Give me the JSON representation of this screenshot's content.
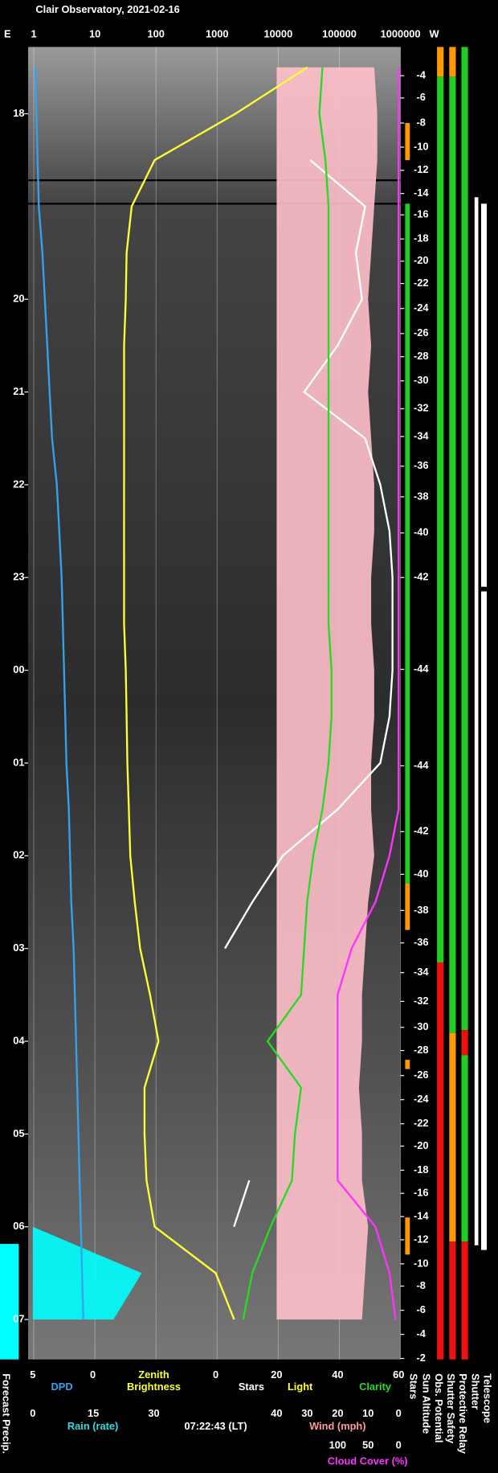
{
  "chart_data": {
    "type": "line",
    "title": "Clair Observatory, 2021-02-16",
    "left_label": "E",
    "right_label": "W",
    "time_label": "07:22:43 (LT)",
    "grid": true,
    "ylim": [
      17.28,
      31.43
    ],
    "yticks": [
      18,
      20,
      21,
      22,
      23,
      {
        "value": 24,
        "label": "00"
      },
      {
        "value": 25,
        "label": "01"
      },
      {
        "value": 26,
        "label": "02"
      },
      {
        "value": 27,
        "label": "03"
      },
      {
        "value": 28,
        "label": "04"
      },
      {
        "value": 29,
        "label": "05"
      },
      {
        "value": 30,
        "label": "06"
      },
      {
        "value": 31,
        "label": "07"
      }
    ],
    "x": [
      17.5,
      18,
      18.5,
      19,
      19.5,
      20,
      20.5,
      21,
      21.5,
      22,
      22.5,
      23,
      23.5,
      24,
      24.5,
      25,
      25.5,
      26,
      26.5,
      27,
      27.5,
      28,
      28.5,
      29,
      29.5,
      30,
      30.5,
      31
    ],
    "bottom_axes": [
      {
        "label": "DPD",
        "color": "#33a3ee",
        "lim": [
          5,
          0
        ],
        "ticks": [
          5,
          0
        ],
        "series": [
          {
            "color": "#33a3ee",
            "values": [
              4.8,
              4.7,
              4.6,
              4.5,
              4.2,
              4.0,
              3.8,
              3.6,
              3.4,
              3.0,
              2.8,
              2.6,
              2.5,
              2.4,
              2.3,
              2.2,
              2.0,
              1.9,
              1.8,
              1.6,
              1.5,
              1.4,
              1.3,
              1.2,
              1.1,
              1.0,
              0.9,
              0.8
            ]
          }
        ]
      },
      {
        "label": [
          "Zenith",
          "Brightness"
        ],
        "color": "#ffff33",
        "log": true,
        "lim": [
          1,
          1000000
        ],
        "ticks": [
          1,
          10,
          100,
          1000,
          10000,
          100000,
          1000000
        ],
        "series": [
          {
            "color": "#ffff33",
            "values": [
              30000,
              2000,
              95,
              40,
              33,
              32,
              30,
              30,
              30,
              30,
              30,
              30,
              30,
              32,
              33,
              34,
              36,
              38,
              45,
              55,
              80,
              110,
              65,
              65,
              70,
              95,
              950,
              1900
            ]
          }
        ]
      },
      {
        "light_label": "Light",
        "light_color": "#ffff33",
        "lim": [
          0,
          60
        ],
        "ticks": [
          0,
          20,
          40,
          60
        ],
        "series": [
          {
            "name": "Stars",
            "color": "#ffffff",
            "values": [
              null,
              null,
              31,
              49,
              46,
              48,
              40,
              29,
              49,
              54,
              57,
              58,
              58,
              58,
              57,
              54,
              40,
              22,
              12,
              3,
              null,
              null,
              null,
              null,
              11,
              6,
              null,
              null
            ]
          },
          {
            "name": "Clarity",
            "color": "#22dd22",
            "values": [
              35,
              34,
              36,
              37,
              37,
              37,
              37,
              37,
              37,
              37,
              37,
              37,
              37,
              38,
              38,
              37,
              35,
              32,
              30,
              29,
              28,
              17,
              28,
              26,
              25,
              18,
              12,
              9
            ]
          }
        ]
      },
      {
        "label": "Rain (rate)",
        "color": "#33dddd",
        "lim": [
          0,
          30
        ],
        "ticks": [
          0,
          15,
          30
        ],
        "fill": true,
        "series": [
          {
            "color": "#00ffff",
            "values": [
              0,
              0,
              0,
              0,
              0,
              0,
              0,
              0,
              0,
              0,
              0,
              0,
              0,
              0,
              0,
              0,
              0,
              0,
              0,
              0,
              0,
              0,
              0,
              0,
              0,
              0,
              27,
              20
            ]
          }
        ]
      },
      {
        "label": "Wind (mph)",
        "color": "#ff9999",
        "lim": [
          40,
          0
        ],
        "ticks": [
          40,
          30,
          20,
          10,
          0
        ],
        "fill": true,
        "series": [
          {
            "color": "#ffc0cb",
            "values": [
              8,
              7,
              7,
              8,
              9,
              10,
              9,
              10,
              9,
              8,
              8,
              9,
              9,
              8,
              8,
              9,
              9,
              8,
              10,
              11,
              12,
              12,
              13,
              12,
              12,
              10,
              11,
              12
            ]
          }
        ]
      },
      {
        "label": "Cloud Cover (%)",
        "color": "#ff33ff",
        "lim": [
          100,
          0
        ],
        "ticks": [
          100,
          50,
          0
        ],
        "series": [
          {
            "color": "#ff33ff",
            "values": [
              0,
              0,
              0,
              0,
              0,
              0,
              0,
              0,
              0,
              0,
              0,
              0,
              0,
              0,
              0,
              0,
              0,
              15,
              38,
              77,
              100,
              100,
              100,
              100,
              100,
              38,
              15,
              5
            ]
          }
        ]
      }
    ],
    "sun_altitude_ticks": [
      {
        "value": 17.59,
        "label": "-4"
      },
      {
        "value": 17.83,
        "label": "-6"
      },
      {
        "value": 18.1,
        "label": "-8"
      },
      {
        "value": 18.36,
        "label": "-10"
      },
      {
        "value": 18.61,
        "label": "-12"
      },
      {
        "value": 18.86,
        "label": "-14"
      },
      {
        "value": 19.09,
        "label": "-16"
      },
      {
        "value": 19.35,
        "label": "-18"
      },
      {
        "value": 19.59,
        "label": "-20"
      },
      {
        "value": 19.83,
        "label": "-22"
      },
      {
        "value": 20.1,
        "label": "-24"
      },
      {
        "value": 20.37,
        "label": "-26"
      },
      {
        "value": 20.62,
        "label": "-28"
      },
      {
        "value": 20.88,
        "label": "-30"
      },
      {
        "value": 21.18,
        "label": "-32"
      },
      {
        "value": 21.48,
        "label": "-34"
      },
      {
        "value": 21.8,
        "label": "-36"
      },
      {
        "value": 22.13,
        "label": "-38"
      },
      {
        "value": 22.52,
        "label": "-40"
      },
      {
        "value": 23.0,
        "label": "-42"
      },
      {
        "value": 23.99,
        "label": "-44"
      },
      {
        "value": 25.03,
        "label": "-44"
      },
      {
        "value": 25.74,
        "label": "-42"
      },
      {
        "value": 26.2,
        "label": "-40"
      },
      {
        "value": 26.59,
        "label": "-38"
      },
      {
        "value": 26.94,
        "label": "-36"
      },
      {
        "value": 27.26,
        "label": "-34"
      },
      {
        "value": 27.57,
        "label": "-32"
      },
      {
        "value": 27.85,
        "label": "-30"
      },
      {
        "value": 28.1,
        "label": "-28"
      },
      {
        "value": 28.37,
        "label": "-26"
      },
      {
        "value": 28.63,
        "label": "-24"
      },
      {
        "value": 28.89,
        "label": "-22"
      },
      {
        "value": 29.13,
        "label": "-20"
      },
      {
        "value": 29.39,
        "label": "-18"
      },
      {
        "value": 29.64,
        "label": "-16"
      },
      {
        "value": 29.89,
        "label": "-14"
      },
      {
        "value": 30.14,
        "label": "-12"
      },
      {
        "value": 30.4,
        "label": "-10"
      },
      {
        "value": 30.64,
        "label": "-8"
      },
      {
        "value": 30.9,
        "label": "-6"
      },
      {
        "value": 31.16,
        "label": "-4"
      },
      {
        "value": 31.42,
        "label": "-2"
      }
    ],
    "sun_altitude_label": "Sun Altitude",
    "forecast_label": "Forecast Precip.",
    "status": [
      {
        "name": "Stars",
        "segments": [
          {
            "start": 18.1,
            "end": 18.5,
            "color": "#ff9900"
          },
          {
            "start": 18.97,
            "end": 26.3,
            "color": "#22cc22"
          },
          {
            "start": 26.3,
            "end": 26.8,
            "color": "#ff9900"
          },
          {
            "start": 28.2,
            "end": 28.3,
            "color": "#ff9900"
          },
          {
            "start": 29.9,
            "end": 30.3,
            "color": "#ff9900"
          }
        ]
      },
      {
        "name": "Obs. Potential",
        "segments": [
          {
            "start": 17.28,
            "end": 17.6,
            "color": "#ff9900"
          },
          {
            "start": 17.6,
            "end": 27.15,
            "color": "#22cc22"
          },
          {
            "start": 27.15,
            "end": 31.43,
            "color": "#ee1111"
          }
        ]
      },
      {
        "name": "Shutter Safety",
        "segments": [
          {
            "start": 17.28,
            "end": 17.6,
            "color": "#ff9900"
          },
          {
            "start": 17.6,
            "end": 27.91,
            "color": "#22cc22"
          },
          {
            "start": 27.91,
            "end": 30.16,
            "color": "#ff9900"
          },
          {
            "start": 30.16,
            "end": 31.43,
            "color": "#ee1111"
          }
        ]
      },
      {
        "name": "Protective Relay",
        "segments": [
          {
            "start": 17.28,
            "end": 27.88,
            "color": "#22cc22"
          },
          {
            "start": 27.88,
            "end": 28.15,
            "color": "#ee1111"
          },
          {
            "start": 28.15,
            "end": 30.16,
            "color": "#22cc22"
          },
          {
            "start": 30.16,
            "end": 31.43,
            "color": "#ee1111"
          }
        ]
      },
      {
        "name": "Shutter",
        "segments": [
          {
            "start": 18.9,
            "end": 30.2,
            "color": "#ffffff"
          }
        ]
      },
      {
        "name": "Telescope",
        "segments": [
          {
            "start": 18.97,
            "end": 23.1,
            "color": "#ffffff"
          },
          {
            "start": 23.15,
            "end": 30.25,
            "color": "#ffffff"
          }
        ]
      }
    ]
  }
}
